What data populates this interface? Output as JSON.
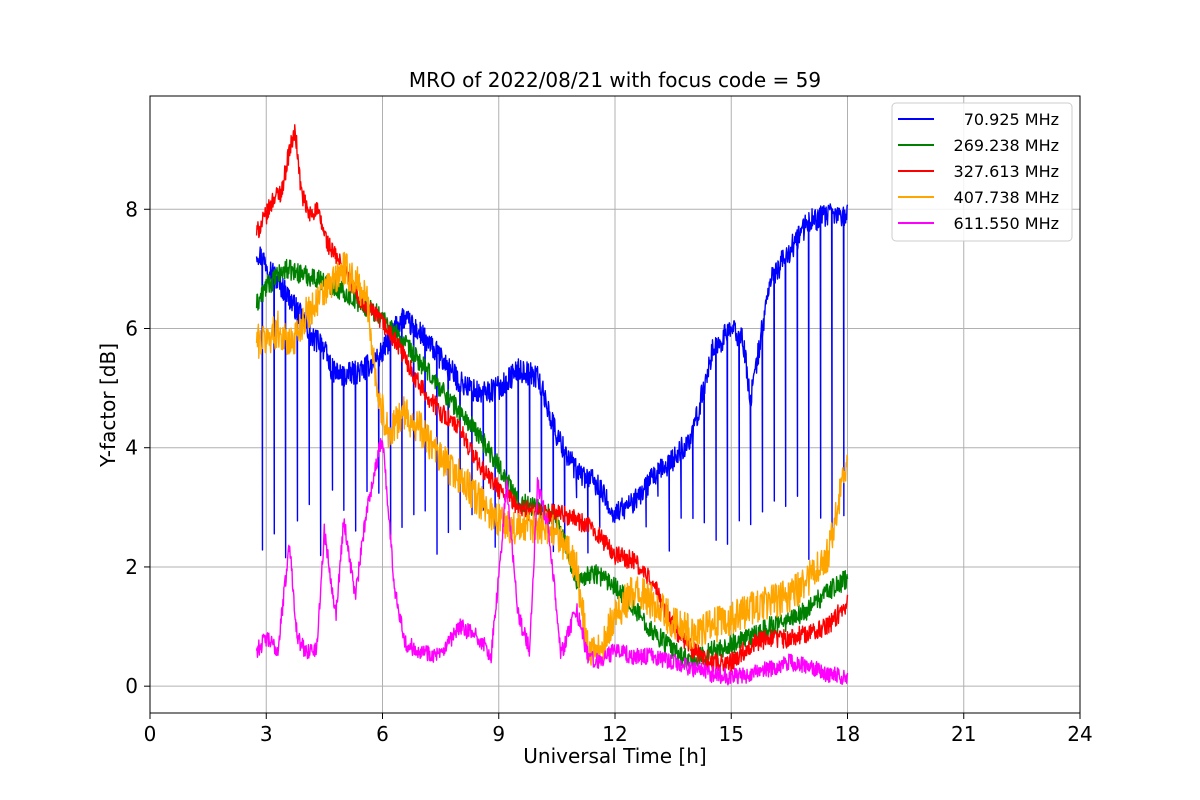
{
  "chart_data": {
    "type": "line",
    "title": "MRO of 2022/08/21 with focus code = 59",
    "xlabel": "Universal Time [h]",
    "ylabel": "Y-factor [dB]",
    "xlim": [
      0,
      24
    ],
    "ylim": [
      -0.45,
      9.9
    ],
    "xticks": [
      0,
      3,
      6,
      9,
      12,
      15,
      18,
      21,
      24
    ],
    "yticks": [
      0,
      2,
      4,
      6,
      8
    ],
    "grid": true,
    "legend_position": "top-right",
    "series": [
      {
        "name": "70.925 MHz",
        "color": "#0000ff",
        "noise": 0.2,
        "dips": {
          "every": 0.3,
          "depth_to": 2.7
        },
        "x": [
          2.75,
          3.0,
          3.5,
          4.0,
          4.2,
          4.4,
          4.7,
          5.0,
          5.5,
          6.0,
          6.5,
          7.0,
          7.5,
          8.0,
          8.5,
          9.0,
          9.5,
          10.0,
          10.5,
          11.0,
          11.5,
          12.0,
          12.5,
          13.0,
          13.5,
          14.0,
          14.5,
          15.0,
          15.3,
          15.5,
          16.0,
          16.5,
          17.0,
          17.5,
          18.0
        ],
        "y": [
          7.3,
          7.1,
          6.6,
          6.1,
          5.8,
          5.8,
          5.3,
          5.2,
          5.3,
          5.6,
          6.2,
          5.9,
          5.5,
          5.1,
          4.9,
          5.0,
          5.3,
          5.2,
          4.2,
          3.6,
          3.4,
          2.9,
          3.1,
          3.5,
          3.8,
          4.2,
          5.6,
          6.0,
          5.8,
          4.8,
          6.8,
          7.3,
          7.8,
          7.9,
          7.9
        ]
      },
      {
        "name": "269.238 MHz",
        "color": "#008000",
        "noise": 0.17,
        "x": [
          2.75,
          3.0,
          3.5,
          4.0,
          4.5,
          5.0,
          5.5,
          6.0,
          6.5,
          7.0,
          7.5,
          8.0,
          8.5,
          9.0,
          9.5,
          10.0,
          10.5,
          11.0,
          11.5,
          12.0,
          12.5,
          13.0,
          13.5,
          14.0,
          14.5,
          15.0,
          15.5,
          16.0,
          16.5,
          17.0,
          17.5,
          18.0
        ],
        "y": [
          6.4,
          6.7,
          7.0,
          6.9,
          6.8,
          6.6,
          6.4,
          6.2,
          5.8,
          5.4,
          5.0,
          4.6,
          4.2,
          3.7,
          3.1,
          3.0,
          2.8,
          1.8,
          1.9,
          1.7,
          1.3,
          0.9,
          0.6,
          0.4,
          0.6,
          0.7,
          0.8,
          1.0,
          1.1,
          1.3,
          1.6,
          1.8
        ]
      },
      {
        "name": "327.613 MHz",
        "color": "#ff0000",
        "noise": 0.16,
        "x": [
          2.75,
          3.0,
          3.2,
          3.4,
          3.6,
          3.75,
          3.9,
          4.1,
          4.3,
          4.6,
          5.0,
          5.5,
          6.0,
          6.5,
          7.0,
          7.5,
          8.0,
          8.5,
          9.0,
          9.5,
          10.0,
          10.5,
          11.0,
          11.5,
          12.0,
          12.5,
          13.0,
          13.5,
          14.0,
          14.5,
          15.0,
          15.5,
          16.0,
          16.5,
          17.0,
          17.5,
          18.0
        ],
        "y": [
          7.6,
          7.9,
          8.2,
          8.3,
          9.0,
          9.3,
          8.3,
          7.9,
          8.0,
          7.4,
          7.0,
          6.4,
          6.1,
          5.6,
          5.0,
          4.6,
          4.3,
          3.7,
          3.3,
          3.0,
          2.9,
          2.9,
          2.8,
          2.6,
          2.2,
          2.1,
          1.7,
          1.0,
          0.6,
          0.4,
          0.4,
          0.7,
          0.8,
          0.8,
          0.9,
          1.0,
          1.4
        ]
      },
      {
        "name": "407.738 MHz",
        "color": "#ffa500",
        "noise": 0.3,
        "x": [
          2.75,
          3.0,
          3.3,
          3.6,
          4.0,
          4.5,
          5.0,
          5.3,
          5.6,
          5.9,
          6.2,
          6.5,
          7.0,
          7.5,
          8.0,
          8.5,
          9.0,
          9.5,
          10.0,
          10.5,
          11.0,
          11.3,
          11.6,
          12.0,
          12.5,
          13.0,
          13.5,
          14.0,
          14.5,
          15.0,
          15.5,
          16.0,
          16.5,
          17.0,
          17.5,
          17.8,
          18.0
        ],
        "y": [
          5.8,
          5.8,
          6.0,
          5.7,
          6.2,
          6.6,
          7.0,
          6.8,
          6.5,
          4.8,
          4.2,
          4.6,
          4.3,
          3.8,
          3.5,
          3.1,
          2.8,
          2.6,
          2.7,
          2.6,
          2.0,
          0.6,
          0.6,
          1.2,
          1.6,
          1.4,
          1.1,
          0.9,
          1.0,
          1.1,
          1.3,
          1.4,
          1.5,
          1.8,
          2.2,
          3.2,
          3.9
        ]
      },
      {
        "name": "611.550 MHz",
        "color": "#ff00ff",
        "noise": 0.14,
        "x": [
          2.75,
          3.0,
          3.3,
          3.6,
          3.8,
          4.0,
          4.3,
          4.5,
          4.8,
          5.0,
          5.3,
          5.6,
          6.0,
          6.3,
          6.6,
          7.0,
          7.5,
          8.0,
          8.5,
          8.8,
          9.0,
          9.2,
          9.5,
          9.8,
          10.0,
          10.3,
          10.6,
          11.0,
          11.3,
          11.6,
          12.0,
          12.5,
          13.0,
          13.5,
          14.0,
          14.5,
          15.0,
          15.5,
          16.0,
          16.5,
          17.0,
          17.5,
          18.0
        ],
        "y": [
          0.6,
          0.8,
          0.6,
          2.4,
          0.8,
          0.6,
          0.6,
          2.6,
          1.2,
          2.8,
          1.5,
          3.0,
          4.2,
          1.7,
          0.7,
          0.6,
          0.5,
          1.0,
          0.8,
          0.5,
          1.8,
          3.4,
          1.2,
          0.6,
          3.4,
          2.6,
          0.5,
          1.3,
          0.5,
          0.4,
          0.6,
          0.5,
          0.5,
          0.4,
          0.3,
          0.2,
          0.15,
          0.2,
          0.3,
          0.4,
          0.35,
          0.2,
          0.15
        ]
      }
    ]
  }
}
